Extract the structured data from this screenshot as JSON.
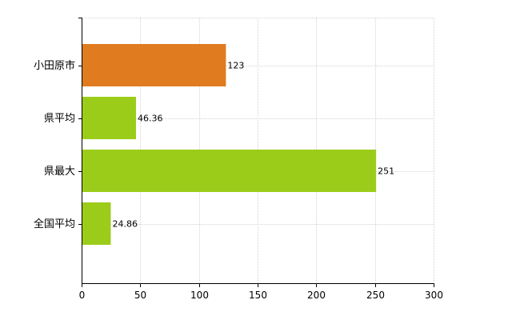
{
  "chart_data": {
    "type": "bar",
    "orientation": "horizontal",
    "categories": [
      "小田原市",
      "県平均",
      "県最大",
      "全国平均"
    ],
    "values": [
      123,
      46.36,
      251,
      24.86
    ],
    "value_labels": [
      "123",
      "46.36",
      "251",
      "24.86"
    ],
    "colors": [
      "#e07b20",
      "#9ccc1a",
      "#9ccc1a",
      "#9ccc1a"
    ],
    "xlim": [
      0,
      300
    ],
    "xticks": [
      0,
      50,
      100,
      150,
      200,
      250,
      300
    ],
    "grid": true,
    "title": "",
    "xlabel": "",
    "ylabel": ""
  }
}
